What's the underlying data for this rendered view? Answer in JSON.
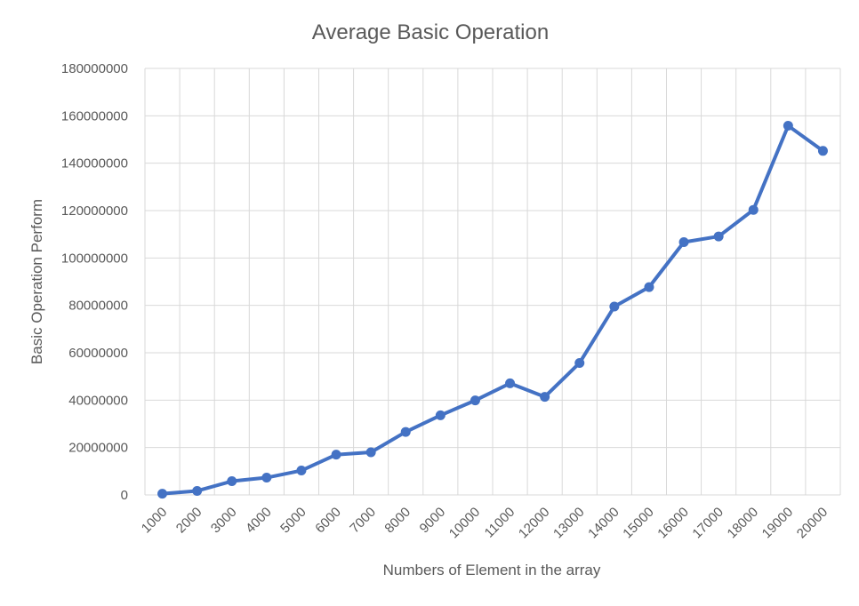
{
  "chart_data": {
    "type": "line",
    "title": "Average Basic Operation",
    "xlabel": "Numbers of Element in the array",
    "ylabel": "Basic Operation Perform",
    "categories": [
      "1000",
      "2000",
      "3000",
      "4000",
      "5000",
      "6000",
      "7000",
      "8000",
      "9000",
      "10000",
      "11000",
      "12000",
      "13000",
      "14000",
      "15000",
      "16000",
      "17000",
      "18000",
      "19000",
      "20000"
    ],
    "series": [
      {
        "values": [
          500000,
          1700000,
          5800000,
          7300000,
          10300000,
          17000000,
          18000000,
          26600000,
          33600000,
          39900000,
          47100000,
          41400000,
          55700000,
          79500000,
          87700000,
          106700000,
          109100000,
          120300000,
          155800000,
          145200000
        ],
        "color": "#4472c4"
      }
    ],
    "ylim": [
      0,
      180000000
    ],
    "yticks": [
      "0",
      "20000000",
      "40000000",
      "60000000",
      "80000000",
      "100000000",
      "120000000",
      "140000000",
      "160000000",
      "180000000"
    ],
    "grid": true,
    "legend": "none"
  }
}
